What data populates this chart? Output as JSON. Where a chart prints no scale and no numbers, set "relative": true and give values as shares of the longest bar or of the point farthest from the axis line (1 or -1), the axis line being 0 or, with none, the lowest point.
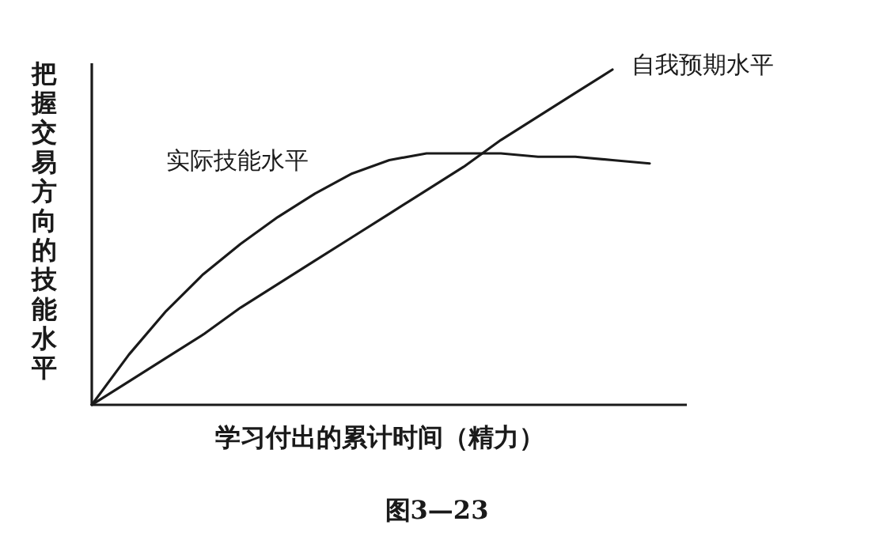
{
  "chart_data": {
    "type": "line",
    "relative": true,
    "xlabel": "学习付出的累计时间（精力）",
    "ylabel": "把握交易方向的技能水平",
    "annotations": [
      "图3—23"
    ],
    "categories": [
      null,
      null,
      null,
      null,
      null,
      null,
      null,
      null,
      null,
      null,
      null,
      null,
      null,
      null,
      null,
      null
    ],
    "series": [
      {
        "name": "实际技能水平",
        "color": "#1a1a1a",
        "values": [
          0,
          0.15,
          0.28,
          0.39,
          0.48,
          0.56,
          0.63,
          0.69,
          0.73,
          0.75,
          0.75,
          0.75,
          0.74,
          0.74,
          0.73,
          0.72
        ]
      },
      {
        "name": "自我预期水平",
        "color": "#1a1a1a",
        "values": [
          0,
          0.07,
          0.14,
          0.21,
          0.29,
          0.36,
          0.43,
          0.5,
          0.57,
          0.64,
          0.71,
          0.79,
          0.86,
          0.93,
          1.0,
          null
        ]
      }
    ]
  }
}
